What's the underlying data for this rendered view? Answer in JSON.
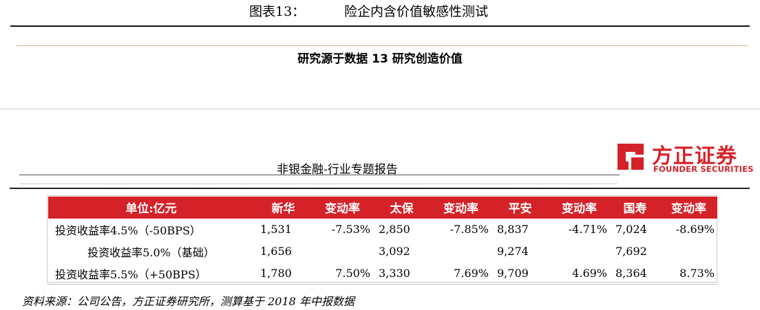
{
  "figure": {
    "label": "图表13：",
    "title": "险企内含价值敏感性测试"
  },
  "subtitle": "研究源于数据 13 研究创造价值",
  "report_header": "非银金融-行业专题报告",
  "logo": {
    "name_cn": "方正证券",
    "name_en": "FOUNDER SECURITIES",
    "brand_color": "#d52229"
  },
  "table": {
    "headers": [
      "单位:亿元",
      "新华",
      "变动率",
      "太保",
      "变动率",
      "平安",
      "变动率",
      "国寿",
      "变动率"
    ],
    "rows": [
      [
        "投资收益率4.5%（-50BPS）",
        "1,531",
        "-7.53%",
        "2,850",
        "-7.85%",
        "8,837",
        "-4.71%",
        "7,024",
        "-8.69%"
      ],
      [
        "投资收益率5.0%（基础）",
        "1,656",
        "",
        "3,092",
        "",
        "9,274",
        "",
        "7,692",
        ""
      ],
      [
        "投资收益率5.5%（+50BPS）",
        "1,780",
        "7.50%",
        "3,330",
        "7.69%",
        "9,709",
        "4.69%",
        "8,364",
        "8.73%"
      ]
    ]
  },
  "source": "资料来源：公司公告，方正证券研究所，测算基于 2018 年中报数据"
}
